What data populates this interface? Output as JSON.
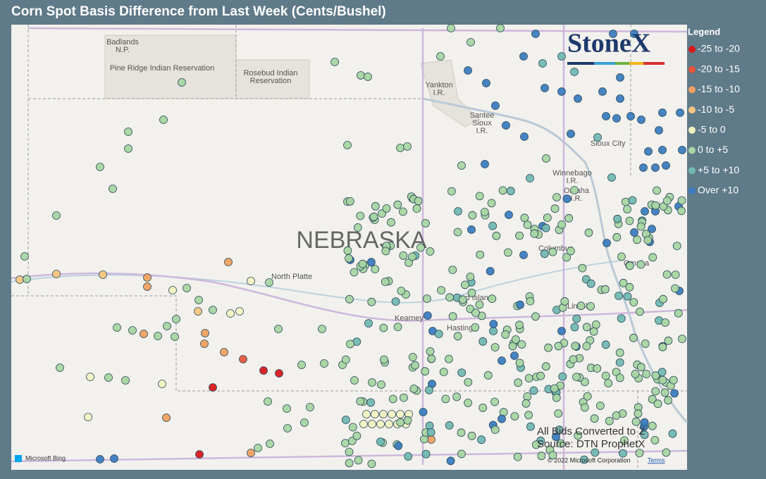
{
  "header": {
    "title": "Corn Spot Basis Difference from Last Week (Cents/Bushel)"
  },
  "legend": {
    "title": "Legend",
    "items": [
      {
        "label": "-25 to -20",
        "color": "#d7191c"
      },
      {
        "label": "-20 to -15",
        "color": "#e8553a"
      },
      {
        "label": "-15 to -10",
        "color": "#f0a060"
      },
      {
        "label": "-10 to -5",
        "color": "#f6c680"
      },
      {
        "label": "-5 to 0",
        "color": "#f3f3c2"
      },
      {
        "label": "0 to +5",
        "color": "#a8d5a2"
      },
      {
        "label": "+5 to +10",
        "color": "#72b8b2"
      },
      {
        "label": "Over +10",
        "color": "#3b7cc0"
      }
    ]
  },
  "map": {
    "state_label": "NEBRASKA",
    "places": [
      [
        "Badlands",
        "N.P."
      ],
      [
        "Pine Ridge Indian Reservation"
      ],
      [
        "Rosebud Indian",
        "Reservation"
      ],
      [
        "Yankton",
        "I.R."
      ],
      [
        "Santee",
        "Sioux",
        "I.R."
      ],
      [
        "Sioux City"
      ],
      [
        "Winnebago",
        "I.R."
      ],
      [
        "Omaha",
        "I.R."
      ],
      [
        "North Platte"
      ],
      [
        "Columbus"
      ],
      [
        "Omaha"
      ],
      [
        "Grand Island"
      ],
      [
        "Kearney"
      ],
      [
        "Hastings"
      ],
      [
        "Lincoln"
      ]
    ]
  },
  "notes": [
    "All Bids Converted to Z",
    "Source: DTN ProphetX"
  ],
  "logo": "StoneX",
  "attribution": {
    "bing": "Microsoft Bing",
    "copyright": "© 2022 Microsoft Corporation",
    "terms": "Terms"
  }
}
